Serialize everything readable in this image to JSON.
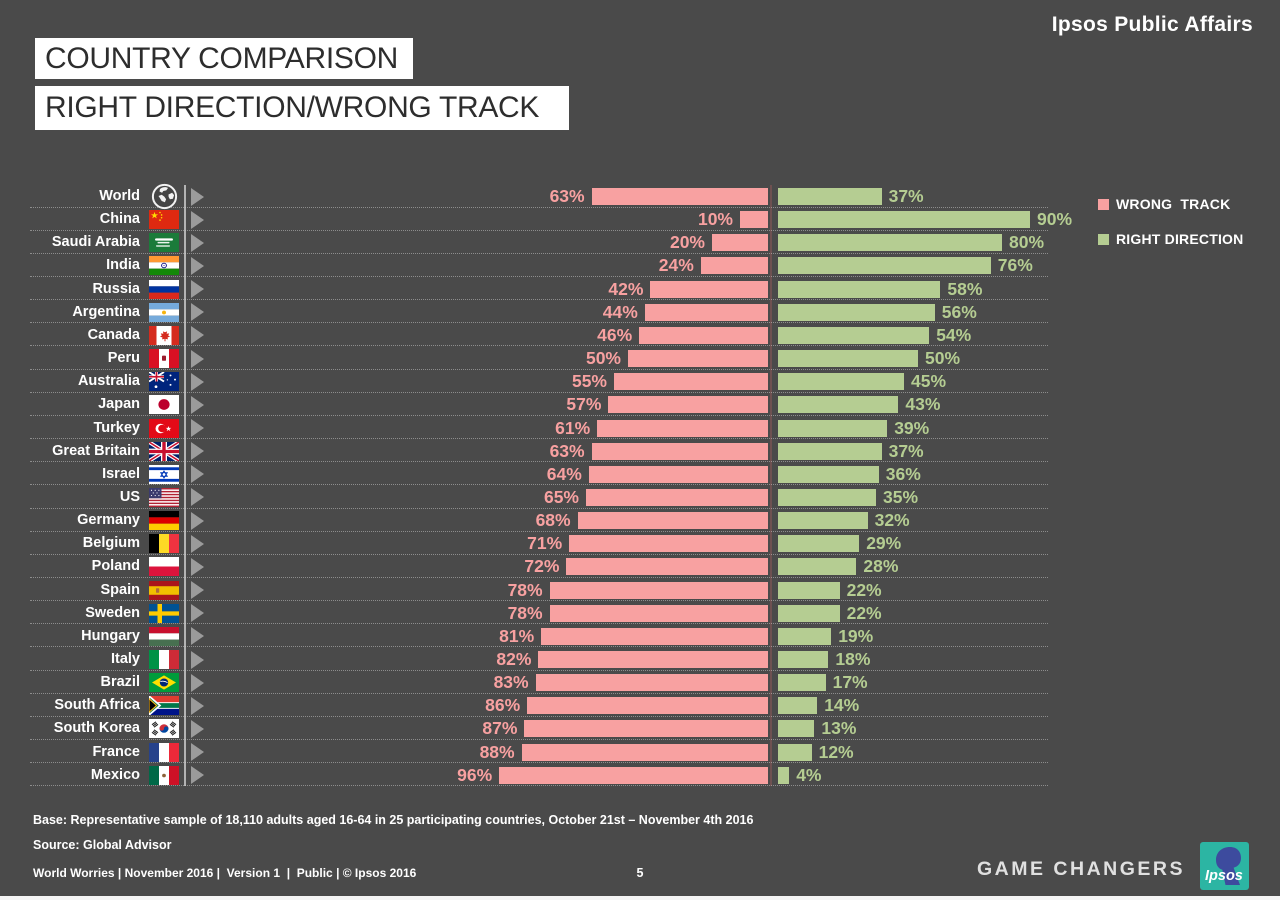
{
  "header": {
    "brand": "Ipsos Public Affairs",
    "title_line1": "COUNTRY COMPARISON",
    "title_line2": "RIGHT DIRECTION/WRONG TRACK"
  },
  "legend": {
    "wrong_label": "WRONG  TRACK",
    "right_label": "RIGHT DIRECTION"
  },
  "colors": {
    "background": "#4a4a4a",
    "wrong_track": "#f8a1a1",
    "right_direction": "#b5cd92",
    "divider_line": "#b3b3b3",
    "logo_teal": "#2cb5a3",
    "logo_blue": "#3d4b9e"
  },
  "chart_data": {
    "type": "bar",
    "orientation": "diverging horizontal, wrong-track bars grow left / right-direction bars grow right",
    "unit": "%",
    "value_suffix": "%",
    "xlim": [
      0,
      100
    ],
    "grid": "dotted row separators",
    "legend_position": "right",
    "categories": [
      "World",
      "China",
      "Saudi Arabia",
      "India",
      "Russia",
      "Argentina",
      "Canada",
      "Peru",
      "Australia",
      "Japan",
      "Turkey",
      "Great Britain",
      "Israel",
      "US",
      "Germany",
      "Belgium",
      "Poland",
      "Spain",
      "Sweden",
      "Hungary",
      "Italy",
      "Brazil",
      "South Africa",
      "South Korea",
      "France",
      "Mexico"
    ],
    "flags": [
      "world",
      "cn",
      "sa",
      "in",
      "ru",
      "ar",
      "ca",
      "pe",
      "au",
      "jp",
      "tr",
      "gb",
      "il",
      "us",
      "de",
      "be",
      "pl",
      "es",
      "se",
      "hu",
      "it",
      "br",
      "za",
      "kr",
      "fr",
      "mx"
    ],
    "series": [
      {
        "name": "WRONG TRACK",
        "color": "#f8a1a1",
        "values": [
          63,
          10,
          20,
          24,
          42,
          44,
          46,
          50,
          55,
          57,
          61,
          63,
          64,
          65,
          68,
          71,
          72,
          78,
          78,
          81,
          82,
          83,
          86,
          87,
          88,
          96
        ]
      },
      {
        "name": "RIGHT DIRECTION",
        "color": "#b5cd92",
        "values": [
          37,
          90,
          80,
          76,
          58,
          56,
          54,
          50,
          45,
          43,
          39,
          37,
          36,
          35,
          32,
          29,
          28,
          22,
          22,
          19,
          18,
          17,
          14,
          13,
          12,
          4
        ]
      }
    ]
  },
  "footer": {
    "base_note": "Base: Representative sample of 18,110 adults aged 16-64 in 25 participating countries, October 21st – November 4th 2016",
    "source_note": "Source: Global Advisor",
    "doc_meta": "World Worries | November 2016 |  Version 1  |  Public | © Ipsos 2016",
    "page_number": "5",
    "tagline": "GAME CHANGERS",
    "logo_label": "Ipsos"
  }
}
